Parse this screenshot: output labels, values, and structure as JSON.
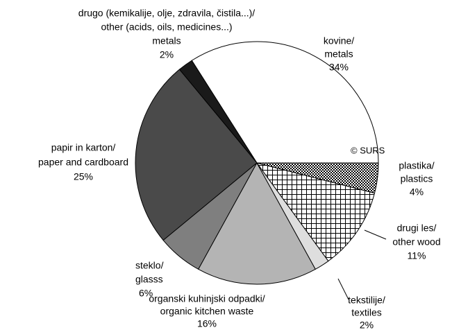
{
  "chart_data": {
    "type": "pie",
    "labels": [
      [
        "kovine/",
        "metals"
      ],
      [
        "drugo (kemikalije, olje, zdravila, čistila...)/",
        "other (acids, oils, medicines...)",
        "metals"
      ],
      [
        "papir in karton/",
        "paper and cardboard"
      ],
      [
        "steklo/",
        "glasss"
      ],
      [
        "organski kuhinjski odpadki/",
        "organic kitchen waste"
      ],
      [
        "tekstilije/",
        "textiles"
      ],
      [
        "drugi les/",
        "other wood"
      ],
      [
        "plastika/",
        "plastics"
      ]
    ],
    "values": [
      34,
      2,
      25,
      6,
      16,
      2,
      11,
      4
    ],
    "value_labels": [
      "34%",
      "2%",
      "25%",
      "6%",
      "16%",
      "2%",
      "11%",
      "4%"
    ],
    "colors": [
      "#ffffff",
      "#1a1a1a",
      "#4a4a4a",
      "#7f7f7f",
      "#b4b4b4",
      "#dedede",
      "pattern-grid",
      "pattern-checker"
    ],
    "start_angle": 0,
    "direction": "counterclockwise",
    "watermark": "© SURS"
  }
}
